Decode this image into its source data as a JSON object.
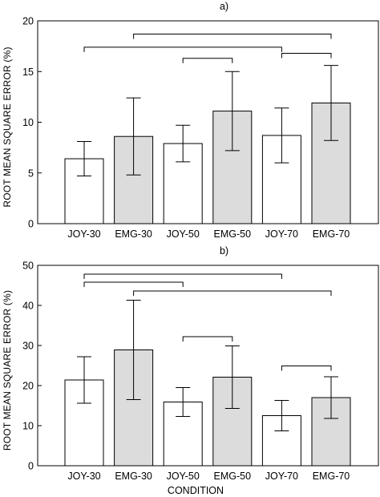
{
  "chart_data": [
    {
      "type": "bar",
      "title": "a)",
      "ylabel": "ROOT MEAN SQUARE ERROR (%)",
      "xlabel": "",
      "ylim": [
        0,
        20
      ],
      "yticks": [
        0,
        5,
        10,
        15,
        20
      ],
      "grid": false,
      "legend": "none",
      "categories": [
        "JOY-30",
        "EMG-30",
        "JOY-50",
        "EMG-50",
        "JOY-70",
        "EMG-70"
      ],
      "values": [
        6.4,
        8.6,
        7.9,
        11.1,
        8.7,
        11.9
      ],
      "error": [
        1.7,
        3.8,
        1.8,
        3.9,
        2.7,
        3.7
      ],
      "fill": [
        "#ffffff",
        "#dcdcdc",
        "#ffffff",
        "#dcdcdc",
        "#ffffff",
        "#dcdcdc"
      ],
      "brackets": [
        {
          "from": 0,
          "to": 4,
          "level": 17.4
        },
        {
          "from": 1,
          "to": 5,
          "level": 18.7
        },
        {
          "from": 2,
          "to": 3,
          "level": 16.3
        },
        {
          "from": 4,
          "to": 5,
          "level": 16.8
        }
      ]
    },
    {
      "type": "bar",
      "title": "b)",
      "ylabel": "ROOT MEAN SQUARE ERROR (%)",
      "xlabel": "CONDITION",
      "ylim": [
        0,
        50
      ],
      "yticks": [
        0,
        10,
        20,
        30,
        40,
        50
      ],
      "grid": false,
      "legend": "none",
      "categories": [
        "JOY-30",
        "EMG-30",
        "JOY-50",
        "EMG-50",
        "JOY-70",
        "EMG-70"
      ],
      "values": [
        21.4,
        28.9,
        15.9,
        22.1,
        12.5,
        17.0
      ],
      "error": [
        5.8,
        12.4,
        3.6,
        7.8,
        3.8,
        5.2
      ],
      "fill": [
        "#ffffff",
        "#dcdcdc",
        "#ffffff",
        "#dcdcdc",
        "#ffffff",
        "#dcdcdc"
      ],
      "brackets": [
        {
          "from": 0,
          "to": 4,
          "level": 47.8
        },
        {
          "from": 0,
          "to": 2,
          "level": 45.8
        },
        {
          "from": 1,
          "to": 5,
          "level": 43.6
        },
        {
          "from": 2,
          "to": 3,
          "level": 32.2
        },
        {
          "from": 4,
          "to": 5,
          "level": 24.9
        }
      ]
    }
  ]
}
